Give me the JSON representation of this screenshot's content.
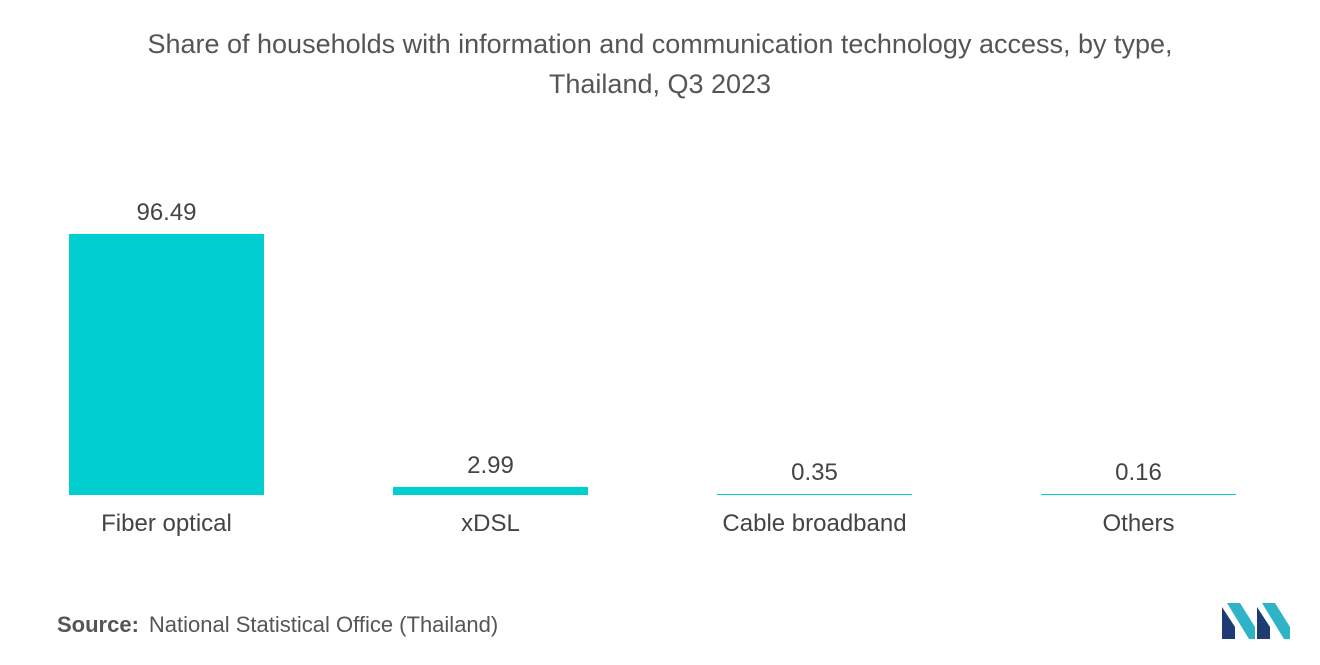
{
  "chart_data": {
    "type": "bar",
    "title_lines": [
      "Share of households with information and communication technology access, by type,",
      "Thailand, Q3 2023"
    ],
    "categories": [
      "Fiber optical",
      "xDSL",
      "Cable broadband",
      "Others"
    ],
    "values": [
      96.49,
      2.99,
      0.35,
      0.16
    ],
    "value_labels": [
      "96.49",
      "2.99",
      "0.35",
      "0.16"
    ],
    "xlabel": "",
    "ylabel": "",
    "ylim": [
      0,
      96.49
    ],
    "grid": false,
    "legend": "none",
    "bar_color": "#00CED1"
  },
  "source": {
    "label": "Source:",
    "text": "National Statistical Office (Thailand)"
  },
  "logo": {
    "icon": "mordor-intelligence-logo",
    "colors": [
      "#1F3B73",
      "#2FB3C7"
    ]
  }
}
